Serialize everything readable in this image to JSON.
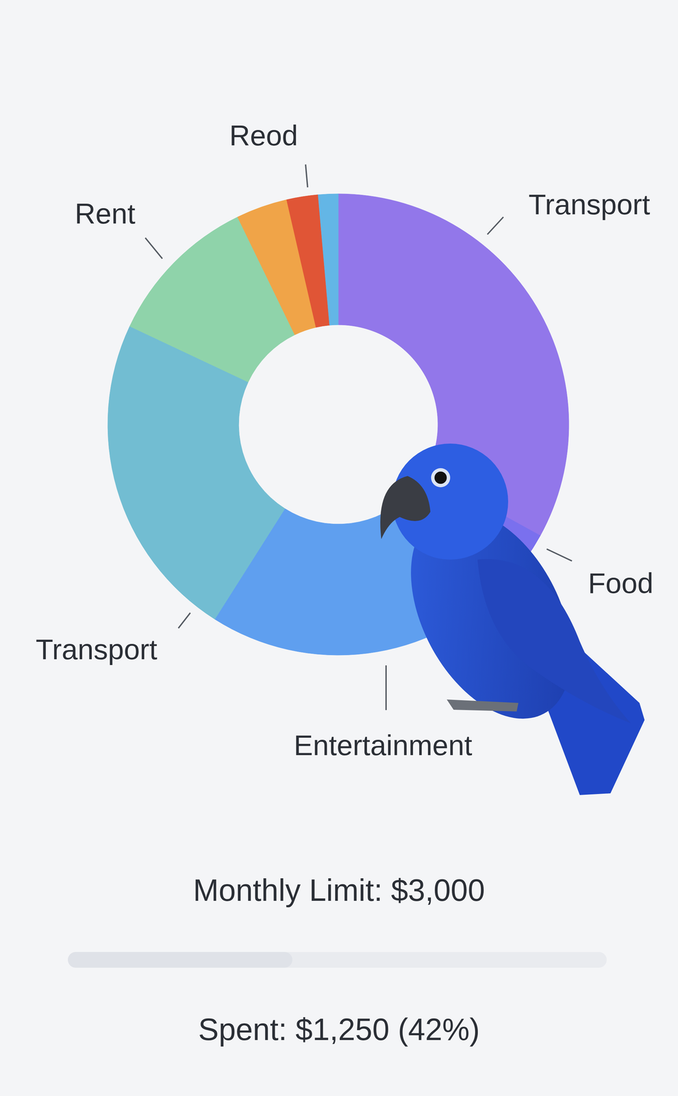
{
  "chart_data": {
    "type": "donut",
    "categories": [
      "Transport",
      "Food",
      "Entertainment",
      "Transport",
      "Rent",
      null,
      "Reod",
      null
    ],
    "values": [
      33,
      4,
      22,
      23,
      10.8,
      3.6,
      2.2,
      1.4
    ],
    "colors": [
      "#9277ea",
      "#7a70ee",
      "#5f9fef",
      "#72bdd2",
      "#8fd3aa",
      "#f0a448",
      "#e05536",
      "#63b6e6"
    ]
  },
  "budget": {
    "limit_label": "Monthly Limit: $3,000",
    "limit": 3000,
    "spent_label": "Spent: $1,250 (42%)",
    "spent": 1250
  }
}
